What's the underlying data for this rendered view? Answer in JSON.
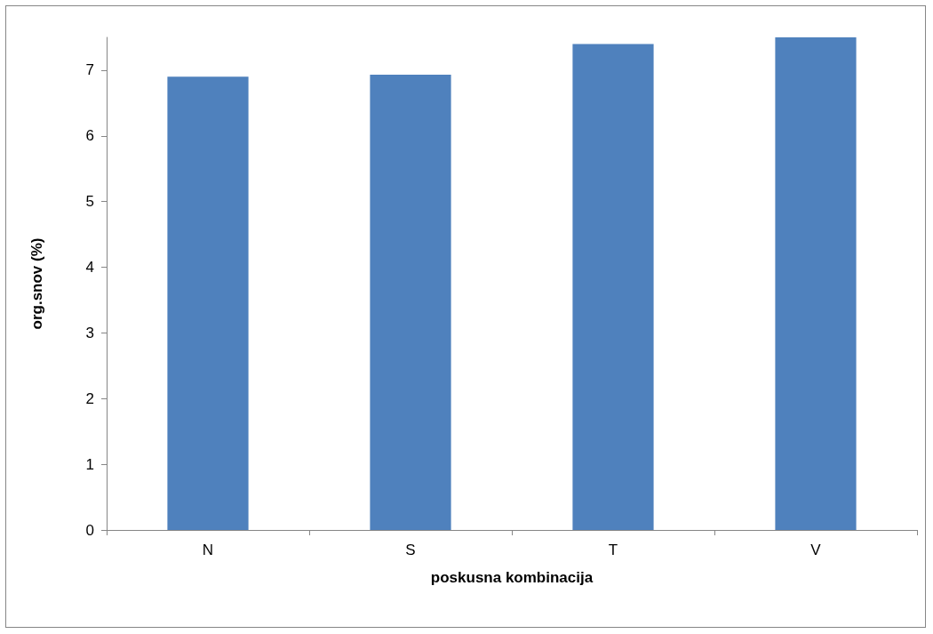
{
  "chart_data": {
    "type": "bar",
    "xlabel": "poskusna kombinacija",
    "ylabel": "org.snov (%)",
    "categories": [
      "N",
      "S",
      "T",
      "V"
    ],
    "values": [
      6.9,
      6.93,
      7.4,
      7.5
    ],
    "color": "#4f81bd",
    "ylim": [
      0,
      7.5
    ],
    "yticks": [
      0,
      1,
      2,
      3,
      4,
      5,
      6,
      7
    ],
    "grid": false
  }
}
